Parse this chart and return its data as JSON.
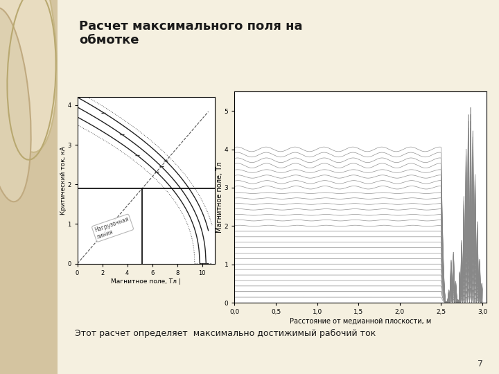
{
  "title": "Расчет максимального поля на\nобмотке",
  "subtitle": "Этот расчет определяет  максимально достижимый рабочий ток",
  "slide_bg": "#f5f0e0",
  "left_panel_bg": "#d4c4a0",
  "page_number": "7",
  "left_plot": {
    "xlabel": "Магнитное поле, Тл",
    "ylabel": "Критический ток, кА",
    "xlim": [
      0,
      11
    ],
    "ylim": [
      0,
      4.2
    ],
    "xticks": [
      0,
      2,
      4,
      6,
      8,
      10
    ],
    "yticks": [
      0,
      1,
      2,
      3,
      4
    ],
    "hline_y": 1.9,
    "load_line_label": "Нагрузочная\nлиния",
    "color": "#333333"
  },
  "right_plot": {
    "xlabel": "Расстояние от медианной плоскости, м",
    "ylabel": "Магнитное поле, Тл",
    "xlim": [
      0.0,
      3.05
    ],
    "ylim": [
      0,
      5.5
    ],
    "xtick_labels": [
      "0,0",
      "0,5",
      "1,0",
      "1,5",
      "2,0",
      "2,5",
      "3,0"
    ],
    "yticks": [
      0,
      1,
      2,
      3,
      4,
      5
    ],
    "num_curves": 30,
    "color": "#888888"
  }
}
